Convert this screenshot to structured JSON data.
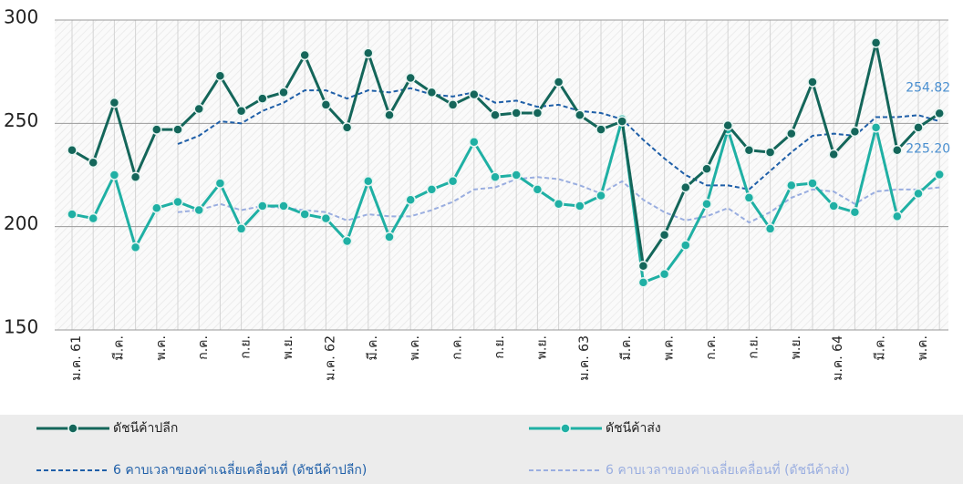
{
  "chart_data": {
    "type": "line",
    "categories": [
      "ม.ค. 61",
      null,
      "มี.ค.",
      null,
      "พ.ค.",
      null,
      "ก.ค.",
      null,
      "ก.ย.",
      null,
      "พ.ย.",
      null,
      "ม.ค. 62",
      null,
      "มี.ค.",
      null,
      "พ.ค.",
      null,
      "ก.ค.",
      null,
      "ก.ย.",
      null,
      "พ.ย.",
      null,
      "ม.ค. 63",
      null,
      "มี.ค.",
      null,
      "พ.ค.",
      null,
      "ก.ค.",
      null,
      "ก.ย.",
      null,
      "พ.ย.",
      null,
      "ม.ค. 64",
      null,
      "มี.ค.",
      null,
      "พ.ค.",
      null
    ],
    "series": [
      {
        "name": "ดัชนีค้าปลีก",
        "color": "#14665a",
        "marker": true,
        "dashed": false,
        "values": [
          237,
          231,
          260,
          224,
          247,
          247,
          257,
          273,
          256,
          262,
          265,
          283,
          259,
          248,
          284,
          254,
          272,
          265,
          259,
          264,
          254,
          255,
          255,
          270,
          254,
          247,
          251,
          181,
          196,
          219,
          228,
          249,
          237,
          236,
          245,
          270,
          235,
          246,
          289,
          237,
          248,
          254.82
        ],
        "value_labels": [
          null,
          null,
          null,
          null,
          null,
          null,
          null,
          null,
          null,
          null,
          null,
          null,
          null,
          null,
          null,
          null,
          null,
          null,
          null,
          null,
          null,
          null,
          null,
          null,
          null,
          null,
          null,
          null,
          null,
          null,
          null,
          null,
          null,
          null,
          null,
          null,
          null,
          null,
          null,
          null,
          null,
          "254.82"
        ]
      },
      {
        "name": "ดัชนีค้าส่ง",
        "color": "#1fb0a4",
        "marker": true,
        "dashed": false,
        "values": [
          206,
          204,
          225,
          190,
          209,
          212,
          208,
          221,
          199,
          210,
          210,
          206,
          204,
          193,
          222,
          195,
          213,
          218,
          222,
          241,
          224,
          225,
          218,
          211,
          210,
          215,
          252,
          173,
          177,
          191,
          211,
          247,
          214,
          199,
          220,
          221,
          210,
          207,
          248,
          205,
          216,
          225.2
        ],
        "value_labels": [
          null,
          null,
          null,
          null,
          null,
          null,
          null,
          null,
          null,
          null,
          null,
          null,
          null,
          null,
          null,
          null,
          null,
          null,
          null,
          null,
          null,
          null,
          null,
          null,
          null,
          null,
          null,
          null,
          null,
          null,
          null,
          null,
          null,
          null,
          null,
          null,
          null,
          null,
          null,
          null,
          null,
          "225.20"
        ]
      },
      {
        "name": "6 คาบเวลาของค่าเฉลี่ยเคลื่อนที่  (ดัชนีค้าปลีก)",
        "color": "#1f5fa8",
        "marker": false,
        "dashed": true,
        "values": [
          null,
          null,
          null,
          null,
          null,
          240,
          244,
          251,
          250,
          256,
          260,
          266,
          266,
          262,
          266,
          265,
          267,
          264,
          263,
          265,
          260,
          261,
          258,
          259,
          256,
          255,
          252,
          242,
          233,
          225,
          220,
          220,
          218,
          227,
          236,
          244,
          245,
          244,
          253,
          253,
          254,
          251
        ]
      },
      {
        "name": "6 คาบเวลาของค่าเฉลี่ยเคลื่อนที่  (ดัชนีค้าส่ง)",
        "color": "#9aaee0",
        "marker": false,
        "dashed": true,
        "values": [
          null,
          null,
          null,
          null,
          null,
          207,
          208,
          211,
          208,
          210,
          209,
          208,
          207,
          203,
          206,
          205,
          205,
          208,
          212,
          218,
          219,
          223,
          224,
          223,
          220,
          216,
          222,
          213,
          207,
          203,
          205,
          209,
          202,
          207,
          214,
          218,
          217,
          211,
          217,
          218,
          218,
          219
        ]
      }
    ],
    "ylim": [
      150,
      300
    ],
    "yticks": [
      150,
      200,
      250,
      300
    ],
    "grid": true
  }
}
